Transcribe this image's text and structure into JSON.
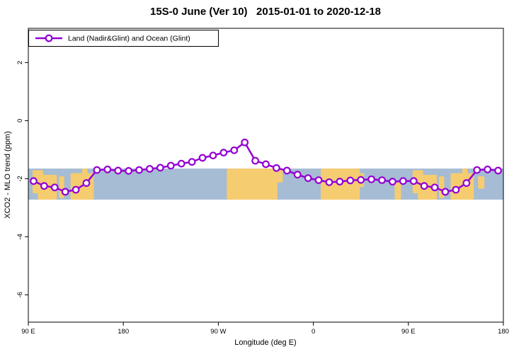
{
  "title": "15S-0 June (Ver 10)   2015-01-01 to 2020-12-18",
  "chart_data": {
    "type": "line",
    "title": "15S-0 June (Ver 10)   2015-01-01 to 2020-12-18",
    "xlabel": "Longitude (deg E)",
    "ylabel": "XCO2 - MLO trend (ppm)",
    "xlim": [
      90,
      540
    ],
    "ylim": [
      -6.94,
      3.18
    ],
    "grid": false,
    "x_ticks": [
      {
        "value": 90,
        "label": "90 E"
      },
      {
        "value": 180,
        "label": "180"
      },
      {
        "value": 270,
        "label": "90 W"
      },
      {
        "value": 360,
        "label": "0"
      },
      {
        "value": 450,
        "label": "90 E"
      },
      {
        "value": 540,
        "label": "180"
      }
    ],
    "y_ticks": [
      {
        "value": 2,
        "label": "2"
      },
      {
        "value": 0,
        "label": "0"
      },
      {
        "value": -2,
        "label": "-2"
      },
      {
        "value": -4,
        "label": "-4"
      },
      {
        "value": -6,
        "label": "-6"
      }
    ],
    "legend": {
      "label": "Land (Nadir&Glint) and Ocean (Glint)",
      "position": "top-left"
    },
    "series": [
      {
        "name": "Land (Nadir&Glint) and Ocean (Glint)",
        "color": "#9400d3",
        "marker": "open-circle",
        "marker_fill": "#ffffff",
        "x": [
          95,
          105,
          115,
          125,
          135,
          145,
          155,
          165,
          175,
          185,
          195,
          205,
          215,
          225,
          235,
          245,
          255,
          265,
          275,
          285,
          295,
          305,
          315,
          325,
          335,
          345,
          355,
          365,
          375,
          385,
          395,
          405,
          415,
          425,
          435,
          445,
          455,
          465,
          475,
          485,
          495,
          505,
          515,
          525,
          535
        ],
        "y": [
          -2.08,
          -2.25,
          -2.3,
          -2.45,
          -2.38,
          -2.15,
          -1.7,
          -1.68,
          -1.72,
          -1.73,
          -1.7,
          -1.66,
          -1.62,
          -1.55,
          -1.48,
          -1.42,
          -1.28,
          -1.2,
          -1.1,
          -1.02,
          -0.75,
          -1.38,
          -1.5,
          -1.63,
          -1.72,
          -1.86,
          -1.98,
          -2.05,
          -2.12,
          -2.1,
          -2.06,
          -2.04,
          -2.02,
          -2.05,
          -2.1,
          -2.08,
          -2.08,
          -2.25,
          -2.3,
          -2.45,
          -2.38,
          -2.15,
          -1.7,
          -1.68,
          -1.72
        ]
      }
    ],
    "map_band": {
      "description": "world map strip for latitude band 15S-0 shown as plot background",
      "y_top": -1.65,
      "y_bottom": -2.72,
      "ocean_color": "#a5bcd4",
      "land_color": "#f6cc70",
      "land_patches": [
        {
          "x0": 94,
          "x1": 104,
          "y0": 0.05,
          "y1": 0.8
        },
        {
          "x0": 99,
          "x1": 117,
          "y0": 0.2,
          "y1": 1.0
        },
        {
          "x0": 119,
          "x1": 124,
          "y0": 0.25,
          "y1": 0.95
        },
        {
          "x0": 130,
          "x1": 152,
          "y0": 0.15,
          "y1": 1.0
        },
        {
          "x0": 141,
          "x1": 146,
          "y0": 0.0,
          "y1": 0.3
        },
        {
          "x0": 278,
          "x1": 326,
          "y0": 0.0,
          "y1": 1.0
        },
        {
          "x0": 326,
          "x1": 331,
          "y0": 0.0,
          "y1": 0.45
        },
        {
          "x0": 367,
          "x1": 404,
          "y0": 0.0,
          "y1": 1.0
        },
        {
          "x0": 404,
          "x1": 408,
          "y0": 0.15,
          "y1": 0.6
        },
        {
          "x0": 437,
          "x1": 443,
          "y0": 0.45,
          "y1": 1.0
        },
        {
          "x0": 454,
          "x1": 464,
          "y0": 0.05,
          "y1": 0.8
        },
        {
          "x0": 459,
          "x1": 477,
          "y0": 0.2,
          "y1": 1.0
        },
        {
          "x0": 479,
          "x1": 484,
          "y0": 0.25,
          "y1": 0.95
        },
        {
          "x0": 490,
          "x1": 512,
          "y0": 0.15,
          "y1": 1.0
        },
        {
          "x0": 501,
          "x1": 506,
          "y0": 0.0,
          "y1": 0.3
        },
        {
          "x0": 516,
          "x1": 522,
          "y0": 0.25,
          "y1": 0.65
        }
      ]
    }
  }
}
